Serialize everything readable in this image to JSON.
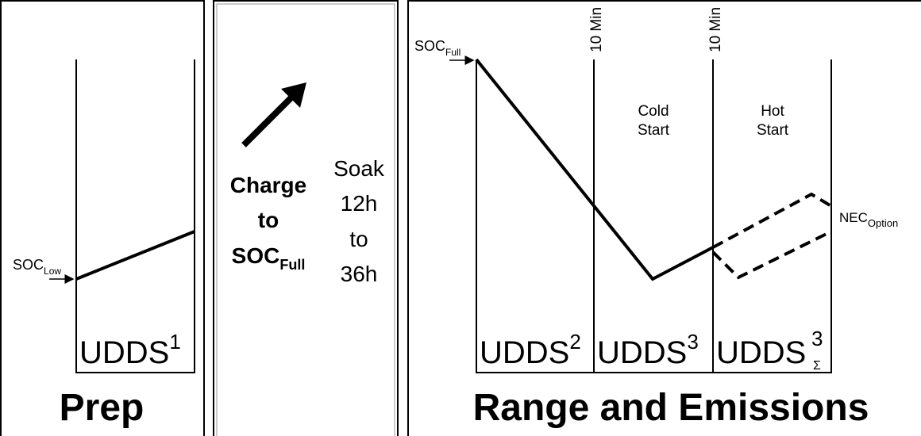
{
  "panels": [
    {
      "title": "Prep",
      "soc_label": {
        "text": "SOC",
        "sub": "Low"
      },
      "cycle": {
        "text": "UDDS",
        "sup": "1"
      }
    },
    {
      "charge": {
        "lines": [
          "Charge",
          "to"
        ],
        "soc": {
          "text": "SOC",
          "sub": "Full"
        }
      },
      "soak": [
        "Soak",
        "12h",
        "to",
        "36h"
      ]
    },
    {
      "title": "Range and Emissions",
      "soc_label": {
        "text": "SOC",
        "sub": "Full"
      },
      "markers": [
        "10 Min",
        "10 Min"
      ],
      "phases": [
        [
          "Cold",
          "Start"
        ],
        [
          "Hot",
          "Start"
        ]
      ],
      "option": {
        "text": "NEC",
        "sub": "Option"
      },
      "cycles": [
        {
          "text": "UDDS",
          "sup": "2"
        },
        {
          "text": "UDDS",
          "sup": "3"
        },
        {
          "text": "UDDS",
          "sup": "3",
          "sub": "Σ"
        }
      ]
    }
  ]
}
